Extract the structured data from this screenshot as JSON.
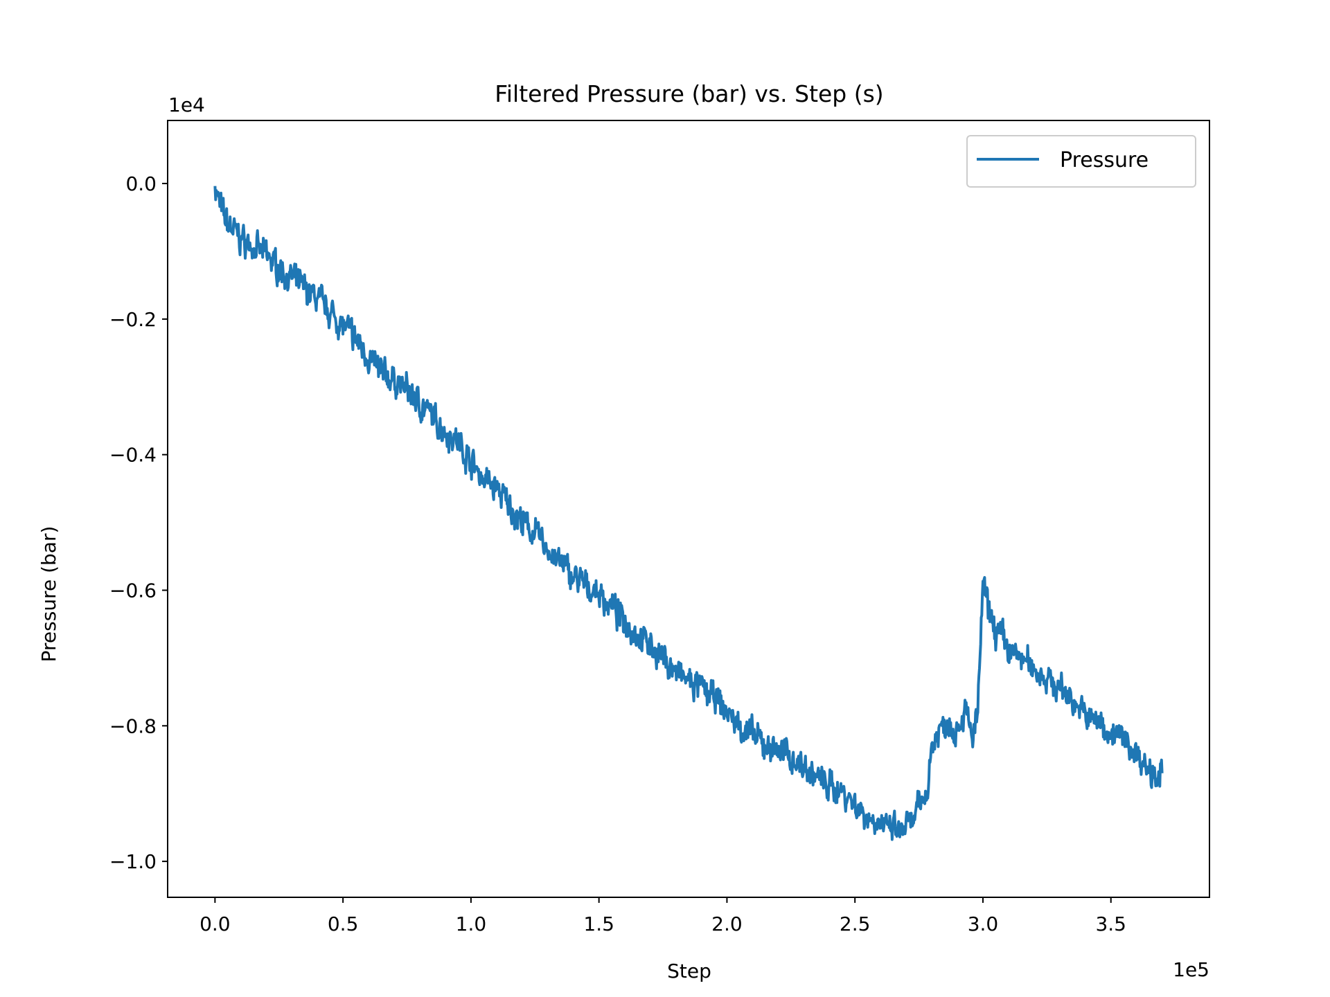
{
  "chart_data": {
    "type": "line",
    "title": "Filtered Pressure (bar) vs. Step (s)",
    "xlabel": "Step",
    "ylabel": "Pressure (bar)",
    "x_scale_label": "1e5",
    "y_scale_label": "1e4",
    "x_scale": 100000,
    "y_scale": 10000,
    "xlim": [
      -18500,
      388500
    ],
    "ylim": [
      -10530,
      930
    ],
    "x_ticks": [
      0,
      50000,
      100000,
      150000,
      200000,
      250000,
      300000,
      350000
    ],
    "x_tick_labels": [
      "0.0",
      "0.5",
      "1.0",
      "1.5",
      "2.0",
      "2.5",
      "3.0",
      "3.5"
    ],
    "y_ticks": [
      0,
      -2000,
      -4000,
      -6000,
      -8000,
      -10000
    ],
    "y_tick_labels": [
      "0.0",
      "−0.2",
      "−0.4",
      "−0.6",
      "−0.8",
      "−1.0"
    ],
    "grid": false,
    "legend_position": "top-right",
    "series": [
      {
        "name": "Pressure",
        "color": "#1f77b4",
        "x": [
          0,
          1000,
          3000,
          5000,
          10000,
          15000,
          20000,
          25000,
          30000,
          35000,
          40000,
          45000,
          50000,
          55000,
          60000,
          65000,
          70000,
          75000,
          80000,
          85000,
          90000,
          95000,
          100000,
          105000,
          110000,
          115000,
          120000,
          125000,
          130000,
          135000,
          140000,
          145000,
          150000,
          155000,
          160000,
          165000,
          170000,
          175000,
          180000,
          185000,
          190000,
          195000,
          200000,
          205000,
          210000,
          215000,
          220000,
          225000,
          230000,
          235000,
          240000,
          245000,
          250000,
          255000,
          260000,
          262000,
          265000,
          268000,
          270000,
          272000,
          275000,
          278000,
          280000,
          283000,
          286000,
          290000,
          293000,
          296000,
          298000,
          300000,
          302000,
          305000,
          308000,
          310000,
          315000,
          320000,
          325000,
          330000,
          335000,
          340000,
          345000,
          350000,
          355000,
          360000,
          365000,
          370000
        ],
        "y": [
          0,
          -200,
          -450,
          -600,
          -800,
          -950,
          -1050,
          -1250,
          -1400,
          -1550,
          -1700,
          -1900,
          -2100,
          -2300,
          -2550,
          -2800,
          -2900,
          -3050,
          -3250,
          -3450,
          -3650,
          -3800,
          -4100,
          -4350,
          -4500,
          -4750,
          -5000,
          -5150,
          -5400,
          -5600,
          -5800,
          -5950,
          -6050,
          -6250,
          -6450,
          -6650,
          -6800,
          -7000,
          -7200,
          -7350,
          -7450,
          -7600,
          -7800,
          -8000,
          -8150,
          -8300,
          -8350,
          -8450,
          -8600,
          -8750,
          -8900,
          -8950,
          -9150,
          -9350,
          -9400,
          -9550,
          -9500,
          -9600,
          -9450,
          -9500,
          -9200,
          -9000,
          -8300,
          -8050,
          -7950,
          -8050,
          -7750,
          -8200,
          -7800,
          -5900,
          -6300,
          -6600,
          -6700,
          -6900,
          -7000,
          -7150,
          -7300,
          -7450,
          -7600,
          -7850,
          -7950,
          -8100,
          -8200,
          -8400,
          -8650,
          -8700
        ]
      }
    ]
  }
}
